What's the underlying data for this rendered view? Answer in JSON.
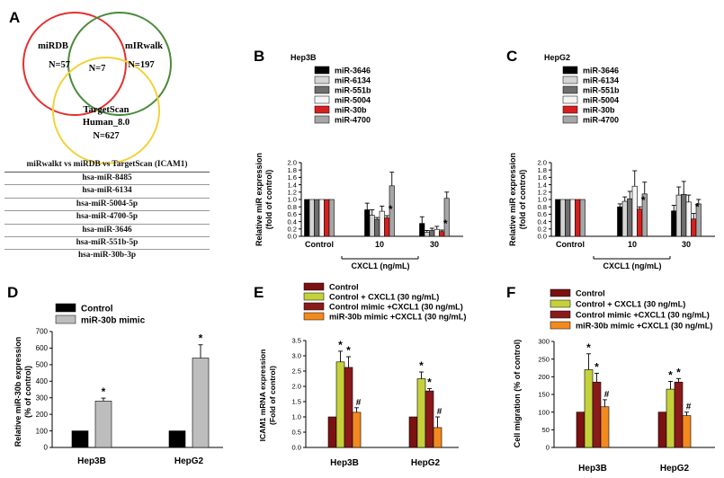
{
  "panel_letters": [
    "A",
    "B",
    "C",
    "D",
    "E",
    "F"
  ],
  "venn": {
    "sets": [
      {
        "name": "miRDB",
        "n": "N=57",
        "color": "#e53030"
      },
      {
        "name": "mIRwalk",
        "n": "N=197",
        "color": "#4a8a3a"
      },
      {
        "name": "TargetScan",
        "line2": "Human_8.0",
        "n": "N=627",
        "color": "#f2d23a"
      }
    ],
    "intersection": "N=7"
  },
  "table": {
    "header": "miRwalkt  vs  miRDB vs  TargetScan  (ICAM1)",
    "rows": [
      "hsa-miR-8485",
      "hsa-miR-6134",
      "hsa-miR-5004-5p",
      "hsa-miR-4700-5p",
      "hsa-miR-3646",
      "hsa-miR-551b-5p",
      "hsa-miR-30b-3p"
    ]
  },
  "chart_data": [
    {
      "id": "B",
      "type": "bar",
      "title": "Hep3B",
      "ylabel": "Relative miR expression\n(fold of control)",
      "xlabel": "CXCL1 (ng/mL)",
      "group_labels": [
        "Control",
        "10",
        "30"
      ],
      "ylim": [
        0,
        2.0
      ],
      "yticks": [
        0.0,
        0.2,
        0.4,
        0.6,
        0.8,
        1.0,
        1.2,
        1.4,
        1.6,
        1.8,
        2.0
      ],
      "series": [
        {
          "name": "miR-3646",
          "color": "#000000",
          "values": [
            1.0,
            0.72,
            0.35
          ],
          "errors": [
            0,
            0.18,
            0.18
          ]
        },
        {
          "name": "miR-6134",
          "color": "#d4d4d4",
          "values": [
            1.0,
            0.57,
            0.11
          ],
          "errors": [
            0,
            0.15,
            0.05
          ]
        },
        {
          "name": "miR-551b",
          "color": "#6e6e6e",
          "values": [
            1.0,
            0.46,
            0.16
          ],
          "errors": [
            0,
            0.05,
            0.06
          ]
        },
        {
          "name": "miR-5004",
          "color": "#f4f4f4",
          "values": [
            1.0,
            0.68,
            0.19
          ],
          "errors": [
            0,
            0.14,
            0.08
          ]
        },
        {
          "name": "miR-30b",
          "color": "#d71f1f",
          "values": [
            1.0,
            0.5,
            0.13
          ],
          "errors": [
            0,
            0.06,
            0.04
          ]
        },
        {
          "name": "miR-4700",
          "color": "#a6a6a6",
          "values": [
            1.0,
            1.37,
            1.03
          ],
          "errors": [
            0,
            0.37,
            0.17
          ]
        }
      ],
      "stars": [
        {
          "group": 1,
          "series": 4
        },
        {
          "group": 2,
          "series": 4
        }
      ],
      "star_label": "*"
    },
    {
      "id": "C",
      "type": "bar",
      "title": "HepG2",
      "ylabel": "Relative miR expression\n(fold of control)",
      "xlabel": "CXCL1 (ng/mL)",
      "group_labels": [
        "Control",
        "10",
        "30"
      ],
      "ylim": [
        0,
        2.0
      ],
      "yticks": [
        0.0,
        0.2,
        0.4,
        0.6,
        0.8,
        1.0,
        1.2,
        1.4,
        1.6,
        1.8,
        2.0
      ],
      "series": [
        {
          "name": "miR-3646",
          "color": "#000000",
          "values": [
            1.0,
            0.8,
            0.69
          ],
          "errors": [
            0,
            0.08,
            0.15
          ]
        },
        {
          "name": "miR-6134",
          "color": "#d4d4d4",
          "values": [
            1.0,
            0.95,
            1.12
          ],
          "errors": [
            0,
            0.12,
            0.22
          ]
        },
        {
          "name": "miR-551b",
          "color": "#6e6e6e",
          "values": [
            1.0,
            1.02,
            1.14
          ],
          "errors": [
            0,
            0.2,
            0.35
          ]
        },
        {
          "name": "miR-5004",
          "color": "#f4f4f4",
          "values": [
            1.0,
            1.36,
            0.93
          ],
          "errors": [
            0,
            0.42,
            0.19
          ]
        },
        {
          "name": "miR-30b",
          "color": "#d71f1f",
          "values": [
            1.0,
            0.74,
            0.47
          ],
          "errors": [
            0,
            0.06,
            0.15
          ]
        },
        {
          "name": "miR-4700",
          "color": "#a6a6a6",
          "values": [
            1.0,
            1.15,
            0.88
          ],
          "errors": [
            0,
            0.32,
            0.12
          ]
        }
      ],
      "stars": [
        {
          "group": 1,
          "series": 4
        },
        {
          "group": 2,
          "series": 4
        }
      ],
      "star_label": "*"
    },
    {
      "id": "D",
      "type": "bar",
      "ylabel": "Relative miR-30b expression\n(% of control)",
      "group_labels": [
        "Hep3B",
        "HepG2"
      ],
      "ylim": [
        0,
        700
      ],
      "yticks": [
        0,
        100,
        200,
        300,
        400,
        500,
        600,
        700
      ],
      "series": [
        {
          "name": "Control",
          "color": "#000000",
          "values": [
            100,
            100
          ],
          "errors": [
            0,
            0
          ]
        },
        {
          "name": "miR-30b mimic",
          "color": "#bdbdbd",
          "values": [
            280,
            540
          ],
          "errors": [
            18,
            80
          ]
        }
      ],
      "stars": [
        {
          "group": 0,
          "series": 1
        },
        {
          "group": 1,
          "series": 1
        }
      ],
      "star_label": "*"
    },
    {
      "id": "E",
      "type": "bar",
      "ylabel": "ICAM1 mRNA expression\n(Fold of control)",
      "group_labels": [
        "Hep3B",
        "HepG2"
      ],
      "ylim": [
        0,
        3.5
      ],
      "yticks": [
        0.0,
        0.5,
        1.0,
        1.5,
        2.0,
        2.5,
        3.0,
        3.5
      ],
      "series": [
        {
          "name": "Control",
          "color": "#7b1111",
          "values": [
            1.0,
            1.0
          ],
          "errors": [
            0,
            0
          ]
        },
        {
          "name": "Control + CXCL1 (30 ng/mL)",
          "color": "#c4d13a",
          "values": [
            2.8,
            2.25
          ],
          "errors": [
            0.35,
            0.22
          ]
        },
        {
          "name": "Control mimic +CXCL1 (30 ng/mL)",
          "color": "#8a1a1a",
          "values": [
            2.62,
            1.85
          ],
          "errors": [
            0.35,
            0.08
          ]
        },
        {
          "name": "miR-30b mimic +CXCL1 (30 ng/mL)",
          "color": "#f28a1e",
          "values": [
            1.15,
            0.65
          ],
          "errors": [
            0.15,
            0.35
          ]
        }
      ],
      "stars": [
        {
          "group": 0,
          "series": 1
        },
        {
          "group": 0,
          "series": 2
        },
        {
          "group": 1,
          "series": 1
        },
        {
          "group": 1,
          "series": 2
        }
      ],
      "hashes": [
        {
          "group": 0,
          "series": 3
        },
        {
          "group": 1,
          "series": 3
        }
      ],
      "star_label": "*",
      "hash_label": "#"
    },
    {
      "id": "F",
      "type": "bar",
      "ylabel": "Cell migration (% of control)",
      "group_labels": [
        "Hep3B",
        "HepG2"
      ],
      "ylim": [
        0,
        300
      ],
      "yticks": [
        0,
        50,
        100,
        150,
        200,
        250,
        300
      ],
      "series": [
        {
          "name": "Control",
          "color": "#7b1111",
          "values": [
            100,
            100
          ],
          "errors": [
            0,
            0
          ]
        },
        {
          "name": "Control + CXCL1 (30 ng/mL)",
          "color": "#c4d13a",
          "values": [
            220,
            165
          ],
          "errors": [
            45,
            22
          ]
        },
        {
          "name": "Control mimic +CXCL1 (30 ng/mL)",
          "color": "#8a1a1a",
          "values": [
            185,
            185
          ],
          "errors": [
            25,
            10
          ]
        },
        {
          "name": "miR-30b mimic +CXCL1 (30 ng/mL)",
          "color": "#f28a1e",
          "values": [
            115,
            90
          ],
          "errors": [
            20,
            10
          ]
        }
      ],
      "stars": [
        {
          "group": 0,
          "series": 1
        },
        {
          "group": 0,
          "series": 2
        },
        {
          "group": 1,
          "series": 1
        },
        {
          "group": 1,
          "series": 2
        }
      ],
      "hashes": [
        {
          "group": 0,
          "series": 3
        },
        {
          "group": 1,
          "series": 3
        }
      ],
      "star_label": "*",
      "hash_label": "#"
    }
  ]
}
